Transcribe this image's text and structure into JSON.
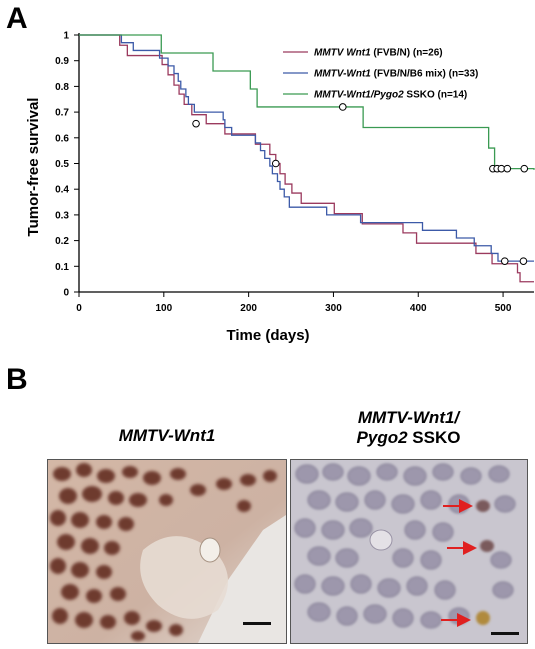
{
  "panel_a": {
    "letter": "A"
  },
  "panel_b": {
    "letter": "B",
    "left_title": {
      "italic": "MMTV-Wnt1"
    },
    "right_title": {
      "line1_italic": "MMTV-Wnt1/",
      "line2_italic": "Pygo2",
      "line2_rest": " SSKO"
    }
  },
  "chart_data": {
    "type": "line",
    "xlabel": "Time (days)",
    "ylabel": "Tumor-free survival",
    "xlim": [
      0,
      540
    ],
    "ylim": [
      0,
      1
    ],
    "xticks": [
      "0",
      "100",
      "200",
      "300",
      "400",
      "500"
    ],
    "yticks": [
      "0",
      "0.1",
      "0.2",
      "0.3",
      "0.4",
      "0.5",
      "0.6",
      "0.7",
      "0.8",
      "0.9",
      "1"
    ],
    "grid": false,
    "legend_position": "top-right",
    "series": [
      {
        "legend_italic": "MMTV Wnt1",
        "legend_rest": " (FVB/N) (n=26)",
        "color": "#9b3a5e",
        "steps": [
          [
            0,
            1
          ],
          [
            48,
            0.96
          ],
          [
            57,
            0.92
          ],
          [
            98,
            0.885
          ],
          [
            105,
            0.845
          ],
          [
            112,
            0.805
          ],
          [
            118,
            0.77
          ],
          [
            124,
            0.73
          ],
          [
            133,
            0.69
          ],
          [
            150,
            0.655
          ],
          [
            172,
            0.615
          ],
          [
            208,
            0.575
          ],
          [
            225,
            0.535
          ],
          [
            232,
            0.5
          ],
          [
            237,
            0.46
          ],
          [
            243,
            0.42
          ],
          [
            251,
            0.385
          ],
          [
            262,
            0.345
          ],
          [
            301,
            0.305
          ],
          [
            334,
            0.265
          ],
          [
            382,
            0.23
          ],
          [
            398,
            0.19
          ],
          [
            468,
            0.15
          ],
          [
            487,
            0.11
          ],
          [
            517,
            0.075
          ],
          [
            520,
            0.04
          ],
          [
            540,
            0.04
          ]
        ],
        "censored": [
          [
            138,
            0.655
          ],
          [
            232,
            0.5
          ]
        ]
      },
      {
        "legend_italic": "MMTV-Wnt1",
        "legend_rest": " (FVB/N/B6 mix) (n=33)",
        "color": "#3c5aa8",
        "steps": [
          [
            0,
            1
          ],
          [
            50,
            0.97
          ],
          [
            64,
            0.94
          ],
          [
            95,
            0.91
          ],
          [
            105,
            0.88
          ],
          [
            112,
            0.85
          ],
          [
            117,
            0.82
          ],
          [
            120,
            0.79
          ],
          [
            126,
            0.76
          ],
          [
            129,
            0.73
          ],
          [
            136,
            0.7
          ],
          [
            170,
            0.67
          ],
          [
            172,
            0.64
          ],
          [
            180,
            0.61
          ],
          [
            208,
            0.58
          ],
          [
            214,
            0.55
          ],
          [
            219,
            0.52
          ],
          [
            225,
            0.49
          ],
          [
            228,
            0.46
          ],
          [
            234,
            0.43
          ],
          [
            237,
            0.4
          ],
          [
            242,
            0.37
          ],
          [
            248,
            0.33
          ],
          [
            292,
            0.3
          ],
          [
            332,
            0.27
          ],
          [
            405,
            0.24
          ],
          [
            445,
            0.21
          ],
          [
            466,
            0.18
          ],
          [
            486,
            0.15
          ],
          [
            494,
            0.12
          ],
          [
            540,
            0.12
          ]
        ],
        "censored": [
          [
            502,
            0.12
          ],
          [
            524,
            0.12
          ]
        ]
      },
      {
        "legend_italic": "MMTV-Wnt1/Pygo2",
        "legend_rest": " SSKO (n=14)",
        "color": "#3a9a52",
        "steps": [
          [
            0,
            1
          ],
          [
            97,
            0.93
          ],
          [
            158,
            0.86
          ],
          [
            202,
            0.79
          ],
          [
            210,
            0.72
          ],
          [
            335,
            0.64
          ],
          [
            483,
            0.56
          ],
          [
            490,
            0.48
          ],
          [
            540,
            0.475
          ]
        ],
        "censored": [
          [
            311,
            0.72
          ],
          [
            488,
            0.48
          ],
          [
            493,
            0.48
          ],
          [
            498,
            0.48
          ],
          [
            505,
            0.48
          ],
          [
            525,
            0.48
          ]
        ]
      }
    ]
  }
}
